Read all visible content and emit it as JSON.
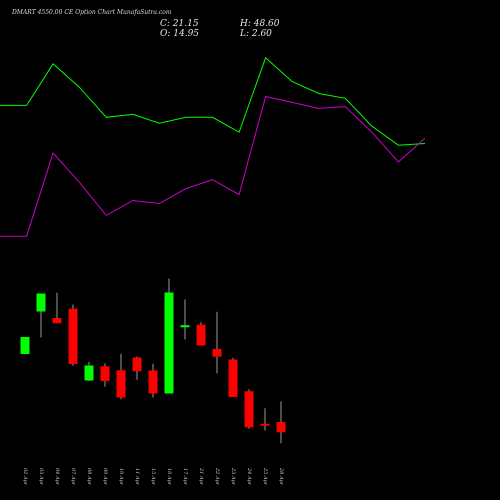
{
  "header": {
    "title": "DMART 4550.00  CE Option  Chart MunafaSutra.com",
    "close": "C: 21.15",
    "open": "O: 14.95",
    "high": "H: 48.60",
    "low": "L: 2.60"
  },
  "chart_data": [
    {
      "type": "line",
      "categories": [
        "02 Apr",
        "03 Apr",
        "04 Apr",
        "07 Apr",
        "08 Apr",
        "09 Apr",
        "10 Apr",
        "11 Apr",
        "15 Apr",
        "16 Apr",
        "17 Apr",
        "21 Apr",
        "22 Apr",
        "23 Apr",
        "24 Apr",
        "25 Apr",
        "28 Apr"
      ],
      "series": [
        {
          "color": "#00ff00",
          "values": [
            41,
            41,
            48,
            44,
            39,
            39.5,
            38,
            39,
            39,
            36.5,
            49,
            45,
            43,
            42.2,
            37.5,
            34.3,
            34.6
          ]
        },
        {
          "color": "#cc00cc",
          "values": [
            19,
            19,
            33,
            28,
            22.5,
            25,
            24.5,
            27,
            28.5,
            26,
            42.5,
            41.5,
            40.5,
            40.8,
            36.5,
            31.5,
            35.5
          ]
        }
      ],
      "ylim": [
        15,
        52
      ],
      "grid": false
    },
    {
      "type": "candlestick",
      "categories": [
        "02 Apr",
        "03 Apr",
        "04 Apr",
        "07 Apr",
        "08 Apr",
        "09 Apr",
        "10 Apr",
        "11 Apr",
        "15 Apr",
        "16 Apr",
        "17 Apr",
        "21 Apr",
        "22 Apr",
        "23 Apr",
        "24 Apr",
        "25 Apr",
        "28 Apr"
      ],
      "up_color": "#00ff00",
      "down_color": "#ff0000",
      "candles": [
        {
          "open": 18.4,
          "high": 24.4,
          "low": 18.4,
          "close": 25.2
        },
        {
          "open": 35.4,
          "high": 42.3,
          "low": 25.0,
          "close": 42.6
        },
        {
          "open": 32.8,
          "high": 42.9,
          "low": 30.7,
          "close": 30.7
        },
        {
          "open": 36.5,
          "high": 38.2,
          "low": 13.7,
          "close": 14.4
        },
        {
          "open": 7.8,
          "high": 15.3,
          "low": 7.6,
          "close": 13.8
        },
        {
          "open": 13.5,
          "high": 14.6,
          "low": 5.3,
          "close": 7.6
        },
        {
          "open": 11.9,
          "high": 18.5,
          "low": 0.3,
          "close": 1.0
        },
        {
          "open": 17.0,
          "high": 17.4,
          "low": 8.1,
          "close": 11.5
        },
        {
          "open": 11.8,
          "high": 14.5,
          "low": 1.0,
          "close": 2.6
        },
        {
          "open": 2.6,
          "high": 48.6,
          "low": 2.6,
          "close": 43.0
        },
        {
          "open": 29.6,
          "high": 40.2,
          "low": 24.2,
          "close": 29.9
        },
        {
          "open": 30.1,
          "high": 31.1,
          "low": 21.8,
          "close": 21.8
        },
        {
          "open": 20.4,
          "high": 35.3,
          "low": 10.6,
          "close": 17.3
        },
        {
          "open": 16.2,
          "high": 16.9,
          "low": 1.2,
          "close": 1.2
        },
        {
          "open": 3.5,
          "high": 4.3,
          "low": -11.5,
          "close": -10.9
        },
        {
          "open": -9.5,
          "high": -3.3,
          "low": -12.2,
          "close": -10.3
        },
        {
          "open": -8.8,
          "high": -0.6,
          "low": -17.3,
          "close": -12.9
        }
      ],
      "ylim": [
        -24,
        60
      ],
      "grid": false
    }
  ]
}
